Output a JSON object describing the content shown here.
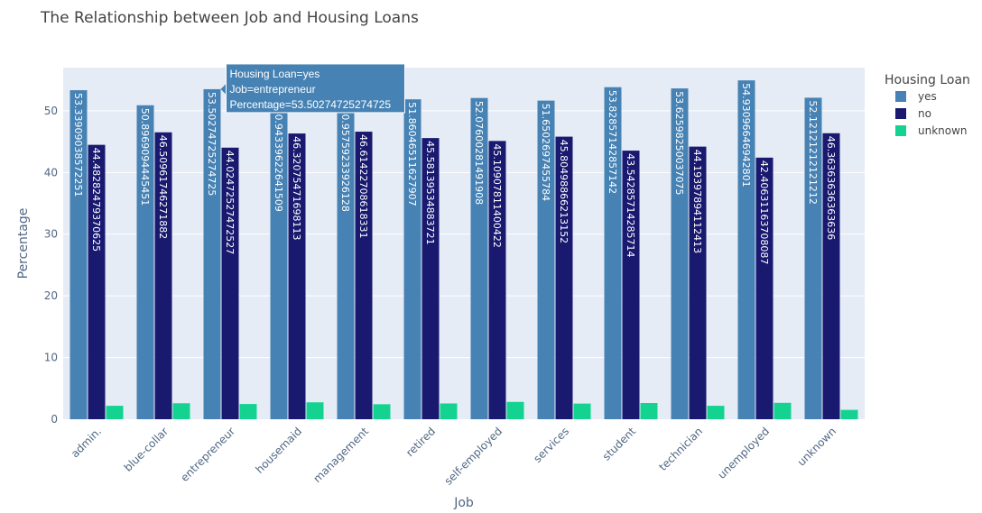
{
  "chart_data": {
    "type": "bar",
    "title": "The Relationship between Job and Housing Loans",
    "xlabel": "Job",
    "ylabel": "Percentage",
    "ylim": [
      0,
      57
    ],
    "yticks": [
      0,
      10,
      20,
      30,
      40,
      50
    ],
    "grid": true,
    "legend_title": "Housing Loan",
    "legend_position": "top-right",
    "categories": [
      "admin.",
      "blue-collar",
      "entrepreneur",
      "housemaid",
      "management",
      "retired",
      "self-employed",
      "services",
      "student",
      "technician",
      "unemployed",
      "unknown"
    ],
    "series": [
      {
        "name": "yes",
        "color": "#4682b4",
        "values": [
          53.33909038572251,
          50.8969094445451,
          53.50274725274725,
          50.94339622641509,
          50.95759233926128,
          51.86046511627907,
          52.07600281491908,
          51.6502697455784,
          53.82857142857142,
          53.62598250037075,
          54.93096646942801,
          52.12121212121212
        ],
        "labels": [
          "53.33909038572251",
          "50.8969094445451",
          "53.50274725274725",
          "50.94339622641509",
          "50.95759233926128",
          "51.86046511627907",
          "52.07600281491908",
          "51.6502697455784",
          "53.82857142857142",
          "53.62598250037075",
          "54.93096646942801",
          "52.12121212121212"
        ]
      },
      {
        "name": "no",
        "color": "#191970",
        "values": [
          44.48282479370625,
          46.50961746271882,
          44.02472527472527,
          46.32075471698113,
          46.61422708618331,
          45.58139534883721,
          45.10907811400422,
          45.80498866213152,
          43.54285714285714,
          44.19397894112413,
          42.40631163708087,
          46.36363636363636
        ],
        "labels": [
          "44.48282479370625",
          "46.50961746271882",
          "44.02472527472527",
          "46.32075471698113",
          "46.61422708618331",
          "45.58139534883721",
          "45.10907811400422",
          "45.80498866213152",
          "43.54285714285714",
          "44.19397894112413",
          "42.40631163708087",
          "46.36363636363636"
        ]
      },
      {
        "name": "unknown",
        "color": "#14d391",
        "values": [
          2.18,
          2.59,
          2.47,
          2.74,
          2.43,
          2.56,
          2.81,
          2.54,
          2.63,
          2.18,
          2.66,
          1.52
        ]
      }
    ],
    "tooltip": {
      "category_index": 2,
      "series_index": 0,
      "lines": [
        "Housing Loan=yes",
        "Job=entrepreneur",
        "Percentage=53.50274725274725"
      ]
    }
  }
}
